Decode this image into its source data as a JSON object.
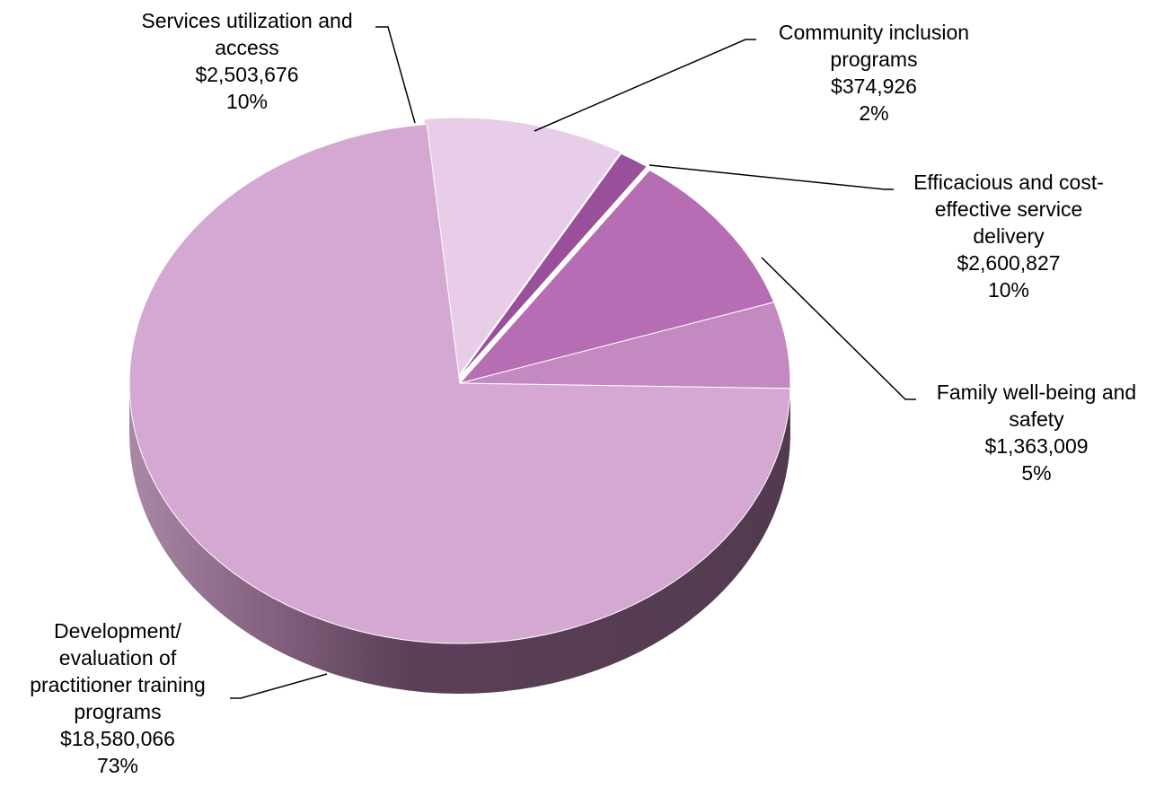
{
  "chart_data": {
    "type": "pie",
    "title": "",
    "slices": [
      {
        "label_lines": [
          "Services utilization and",
          "access"
        ],
        "value_text": "$2,503,676",
        "pct_text": "10%",
        "value": 2503676,
        "percent": 10,
        "color": "#e8cde8"
      },
      {
        "label_lines": [
          "Community inclusion",
          "programs"
        ],
        "value_text": "$374,926",
        "pct_text": "2%",
        "value": 374926,
        "percent": 2,
        "color": "#9a4f9a"
      },
      {
        "label_lines": [
          "Efficacious and cost-",
          "effective service",
          "delivery"
        ],
        "value_text": "$2,600,827",
        "pct_text": "10%",
        "value": 2600827,
        "percent": 10,
        "color": "#b76db3"
      },
      {
        "label_lines": [
          "Family well-being and",
          "safety"
        ],
        "value_text": "$1,363,009",
        "pct_text": "5%",
        "value": 1363009,
        "percent": 5,
        "color": "#c489c1"
      },
      {
        "label_lines": [
          "Development/",
          "evaluation of",
          "practitioner training",
          "programs"
        ],
        "value_text": "$18,580,066",
        "pct_text": "73%",
        "value": 18580066,
        "percent": 73,
        "color": "#d5a7d3"
      }
    ]
  }
}
